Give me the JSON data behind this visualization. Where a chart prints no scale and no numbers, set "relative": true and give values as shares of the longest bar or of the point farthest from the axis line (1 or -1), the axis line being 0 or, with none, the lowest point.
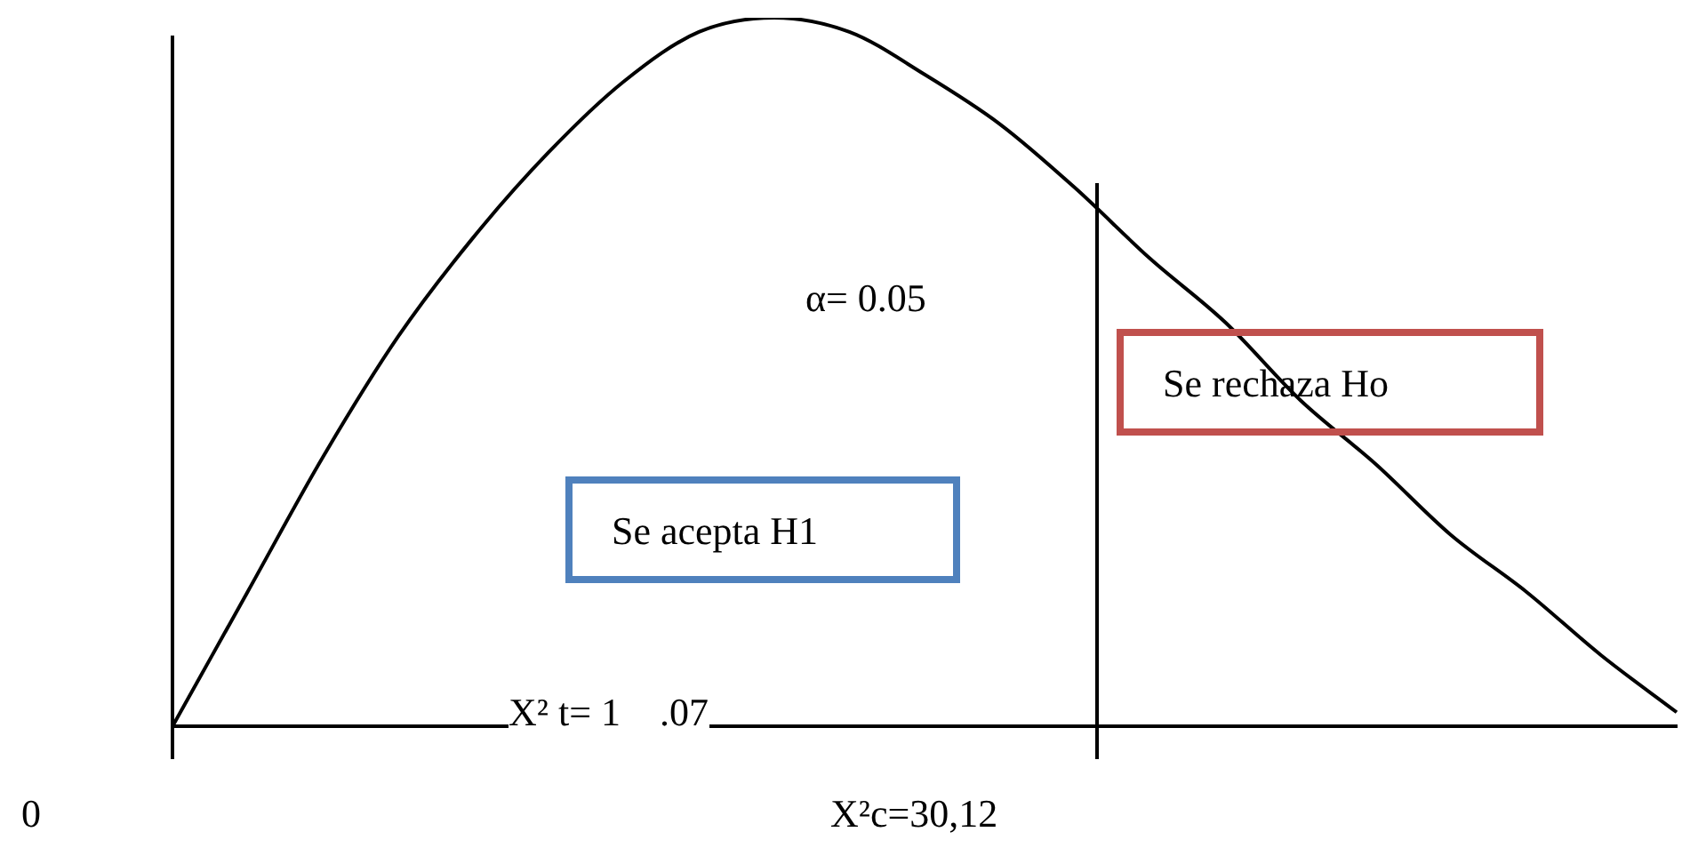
{
  "chart_data": {
    "type": "line",
    "relative": true,
    "categories": [
      null,
      null,
      null,
      null,
      null,
      null,
      null,
      null,
      null,
      null,
      null,
      null,
      null,
      null,
      null,
      null,
      null,
      null,
      null,
      null,
      null
    ],
    "series": [
      {
        "color": "#000000",
        "values": [
          0,
          0.19,
          0.38,
          0.55,
          0.69,
          0.81,
          0.91,
          0.98,
          1,
          0.98,
          0.92,
          0.85,
          0.76,
          0.66,
          0.57,
          0.46,
          0.37,
          0.27,
          0.19,
          0.1,
          0.02
        ]
      }
    ],
    "annotations": [
      "α= 0.05",
      "Se rechaza Ho",
      "Se acepta H1",
      "X² t= 1    .07",
      "0",
      "X²c=30,12"
    ],
    "grid": false,
    "legend": false,
    "marker": "none",
    "line_style": "solid"
  }
}
